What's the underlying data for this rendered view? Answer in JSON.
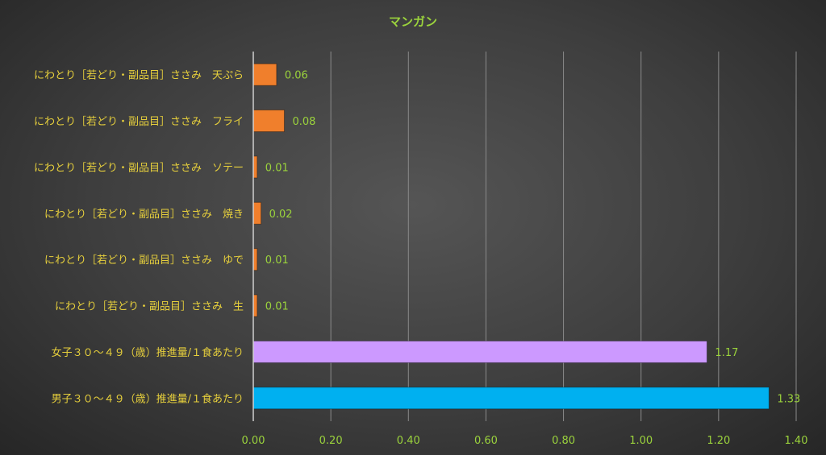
{
  "chart_data": {
    "type": "bar",
    "orientation": "horizontal",
    "title": "マンガン",
    "xlabel": "",
    "ylabel": "",
    "xlim": [
      0,
      1.4
    ],
    "x_ticks": [
      "0.00",
      "0.20",
      "0.40",
      "0.60",
      "0.80",
      "1.00",
      "1.20",
      "1.40"
    ],
    "grid": true,
    "legend": "none",
    "categories": [
      "にわとり［若どり・副品目］ささみ　天ぷら",
      "にわとり［若どり・副品目］ささみ　フライ",
      "にわとり［若どり・副品目］ささみ　ソテー",
      "にわとり［若どり・副品目］ささみ　焼き",
      "にわとり［若どり・副品目］ささみ　ゆで",
      "にわとり［若どり・副品目］ささみ　生",
      "女子３０～４９（歳）推進量/１食あたり",
      "男子３０～４９（歳）推進量/１食あたり"
    ],
    "values": [
      0.06,
      0.08,
      0.01,
      0.02,
      0.01,
      0.01,
      1.17,
      1.33
    ],
    "value_labels": [
      "0.06",
      "0.08",
      "0.01",
      "0.02",
      "0.01",
      "0.01",
      "1.17",
      "1.33"
    ],
    "bar_colors": [
      "#f07f2c",
      "#f07f2c",
      "#f07f2c",
      "#f07f2c",
      "#f07f2c",
      "#f07f2c",
      "#cc99ff",
      "#00b0f0"
    ],
    "colors": {
      "title": "#9bd33c",
      "category_label": "#e6cf3c",
      "tick_label": "#9bd33c",
      "value_label": "#9bd33c"
    }
  }
}
